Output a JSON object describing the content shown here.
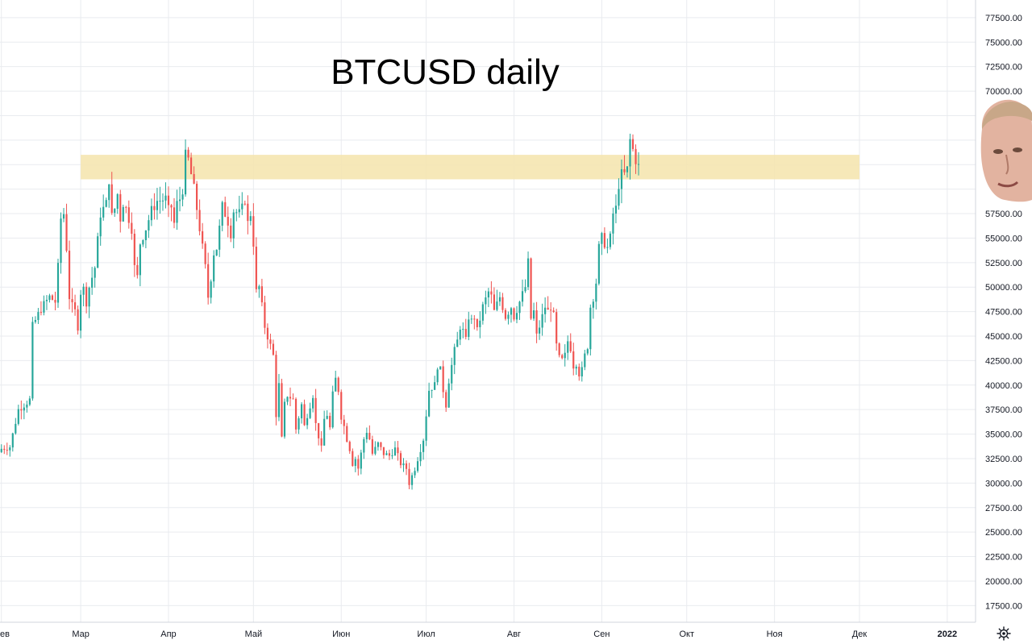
{
  "chart_data": {
    "type": "candlestick",
    "title": "BTCUSD daily",
    "x_labels": [
      {
        "label": "Фев",
        "day": 0
      },
      {
        "label": "Мар",
        "day": 28
      },
      {
        "label": "Апр",
        "day": 59
      },
      {
        "label": "Май",
        "day": 89
      },
      {
        "label": "Июн",
        "day": 120
      },
      {
        "label": "Июл",
        "day": 150
      },
      {
        "label": "Авг",
        "day": 181
      },
      {
        "label": "Сен",
        "day": 212
      },
      {
        "label": "Окт",
        "day": 242
      },
      {
        "label": "Ноя",
        "day": 273
      },
      {
        "label": "Дек",
        "day": 303
      },
      {
        "label": "2022",
        "day": 334
      }
    ],
    "y_ticks": [
      "17500.00",
      "20000.00",
      "22500.00",
      "25000.00",
      "27500.00",
      "30000.00",
      "32500.00",
      "35000.00",
      "37500.00",
      "40000.00",
      "42500.00",
      "45000.00",
      "47500.00",
      "50000.00",
      "52500.00",
      "55000.00",
      "57500.00",
      "70000.00",
      "72500.00",
      "75000.00",
      "77500.00"
    ],
    "ylim": [
      15800,
      79300
    ],
    "xlim_days": [
      -0.5,
      344
    ],
    "resistance_zone": {
      "low": 61000,
      "high": 63500,
      "start_day": 28,
      "end_day": 303
    },
    "colors": {
      "up": "#26a69a",
      "down": "#ef5350",
      "zone": "#f5e5b0",
      "grid": "#e9ebef",
      "axis_text": "#131722"
    },
    "keypoints": [
      [
        0,
        33500
      ],
      [
        3,
        33700
      ],
      [
        6,
        37500
      ],
      [
        10,
        38500
      ],
      [
        11,
        46000
      ],
      [
        14,
        47800
      ],
      [
        17,
        49000
      ],
      [
        19,
        48500
      ],
      [
        20,
        52000
      ],
      [
        21,
        57000
      ],
      [
        22,
        57500
      ],
      [
        23,
        54000
      ],
      [
        24,
        49000
      ],
      [
        25,
        48000
      ],
      [
        26,
        47500
      ],
      [
        27,
        46000
      ],
      [
        28,
        49500
      ],
      [
        29,
        49800
      ],
      [
        30,
        48500
      ],
      [
        31,
        50000
      ],
      [
        33,
        52000
      ],
      [
        35,
        57500
      ],
      [
        37,
        58500
      ],
      [
        38,
        61000
      ],
      [
        39,
        57200
      ],
      [
        40,
        58000
      ],
      [
        41,
        59500
      ],
      [
        42,
        57000
      ],
      [
        43,
        58600
      ],
      [
        44,
        58000
      ],
      [
        46,
        56000
      ],
      [
        47,
        52000
      ],
      [
        48,
        51000
      ],
      [
        49,
        54500
      ],
      [
        51,
        56000
      ],
      [
        53,
        57800
      ],
      [
        55,
        58800
      ],
      [
        58,
        59000
      ],
      [
        59,
        57800
      ],
      [
        60,
        58200
      ],
      [
        61,
        56500
      ],
      [
        62,
        58500
      ],
      [
        63,
        59000
      ],
      [
        64,
        60000
      ],
      [
        65,
        63400
      ],
      [
        66,
        63000
      ],
      [
        67,
        61500
      ],
      [
        68,
        60000
      ],
      [
        70,
        56000
      ],
      [
        72,
        52000
      ],
      [
        73,
        49000
      ],
      [
        74,
        51000
      ],
      [
        75,
        53500
      ],
      [
        76,
        54000
      ],
      [
        77,
        56000
      ],
      [
        78,
        58200
      ],
      [
        79,
        57500
      ],
      [
        80,
        56700
      ],
      [
        81,
        55500
      ],
      [
        82,
        57800
      ],
      [
        84,
        57500
      ],
      [
        85,
        58000
      ],
      [
        86,
        59000
      ],
      [
        87,
        56500
      ],
      [
        88,
        57500
      ],
      [
        89,
        54500
      ],
      [
        90,
        49500
      ],
      [
        91,
        50000
      ],
      [
        93,
        46000
      ],
      [
        96,
        43000
      ],
      [
        97,
        37000
      ],
      [
        98,
        40000
      ],
      [
        99,
        34500
      ],
      [
        100,
        38000
      ],
      [
        101,
        39000
      ],
      [
        103,
        38500
      ],
      [
        104,
        35500
      ],
      [
        106,
        38000
      ],
      [
        107,
        35800
      ],
      [
        108,
        37000
      ],
      [
        110,
        39000
      ],
      [
        111,
        36000
      ],
      [
        112,
        34800
      ],
      [
        113,
        33500
      ],
      [
        114,
        36500
      ],
      [
        115,
        37000
      ],
      [
        116,
        35600
      ],
      [
        117,
        39000
      ],
      [
        118,
        40600
      ],
      [
        119,
        39500
      ],
      [
        120,
        36800
      ],
      [
        121,
        35800
      ],
      [
        122,
        34500
      ],
      [
        123,
        33500
      ],
      [
        124,
        32000
      ],
      [
        125,
        32500
      ],
      [
        126,
        31500
      ],
      [
        127,
        33000
      ],
      [
        128,
        34500
      ],
      [
        129,
        35300
      ],
      [
        130,
        34500
      ],
      [
        131,
        33000
      ],
      [
        133,
        34000
      ],
      [
        135,
        33000
      ],
      [
        137,
        32800
      ],
      [
        139,
        33500
      ],
      [
        141,
        32000
      ],
      [
        143,
        31500
      ],
      [
        144,
        30000
      ],
      [
        146,
        31500
      ],
      [
        147,
        32500
      ],
      [
        149,
        34500
      ],
      [
        151,
        39500
      ],
      [
        152,
        39800
      ],
      [
        153,
        40000
      ],
      [
        154,
        42000
      ],
      [
        155,
        41500
      ],
      [
        156,
        39500
      ],
      [
        157,
        38000
      ],
      [
        158,
        40500
      ],
      [
        160,
        43500
      ],
      [
        161,
        44500
      ],
      [
        162,
        46000
      ],
      [
        163,
        45500
      ],
      [
        164,
        44500
      ],
      [
        165,
        47000
      ],
      [
        166,
        46500
      ],
      [
        167,
        47000
      ],
      [
        168,
        45500
      ],
      [
        170,
        48000
      ],
      [
        172,
        49500
      ],
      [
        173,
        49000
      ],
      [
        174,
        47500
      ],
      [
        176,
        49000
      ],
      [
        178,
        47000
      ],
      [
        180,
        48000
      ],
      [
        181,
        47000
      ],
      [
        183,
        48500
      ],
      [
        185,
        50000
      ],
      [
        186,
        52500
      ],
      [
        187,
        46800
      ],
      [
        188,
        47500
      ],
      [
        189,
        45000
      ],
      [
        190,
        46000
      ],
      [
        192,
        48000
      ],
      [
        193,
        47500
      ],
      [
        194,
        48000
      ],
      [
        195,
        47000
      ],
      [
        196,
        44000
      ],
      [
        197,
        42700
      ],
      [
        198,
        42500
      ],
      [
        199,
        43000
      ],
      [
        200,
        44500
      ],
      [
        201,
        43800
      ],
      [
        202,
        42000
      ],
      [
        203,
        42300
      ],
      [
        204,
        41200
      ],
      [
        205,
        41500
      ],
      [
        206,
        43000
      ],
      [
        207,
        44000
      ],
      [
        208,
        48000
      ],
      [
        209,
        49000
      ],
      [
        210,
        50500
      ],
      [
        211,
        54000
      ],
      [
        212,
        55000
      ],
      [
        213,
        54500
      ],
      [
        214,
        54000
      ],
      [
        215,
        55000
      ],
      [
        216,
        57500
      ],
      [
        217,
        58000
      ],
      [
        218,
        60500
      ],
      [
        219,
        61500
      ],
      [
        220,
        61500
      ],
      [
        221,
        62000
      ],
      [
        222,
        65000
      ],
      [
        223,
        64000
      ],
      [
        224,
        63000
      ],
      [
        225,
        62300
      ]
    ]
  },
  "ui": {
    "settings_icon": "gear-icon"
  }
}
